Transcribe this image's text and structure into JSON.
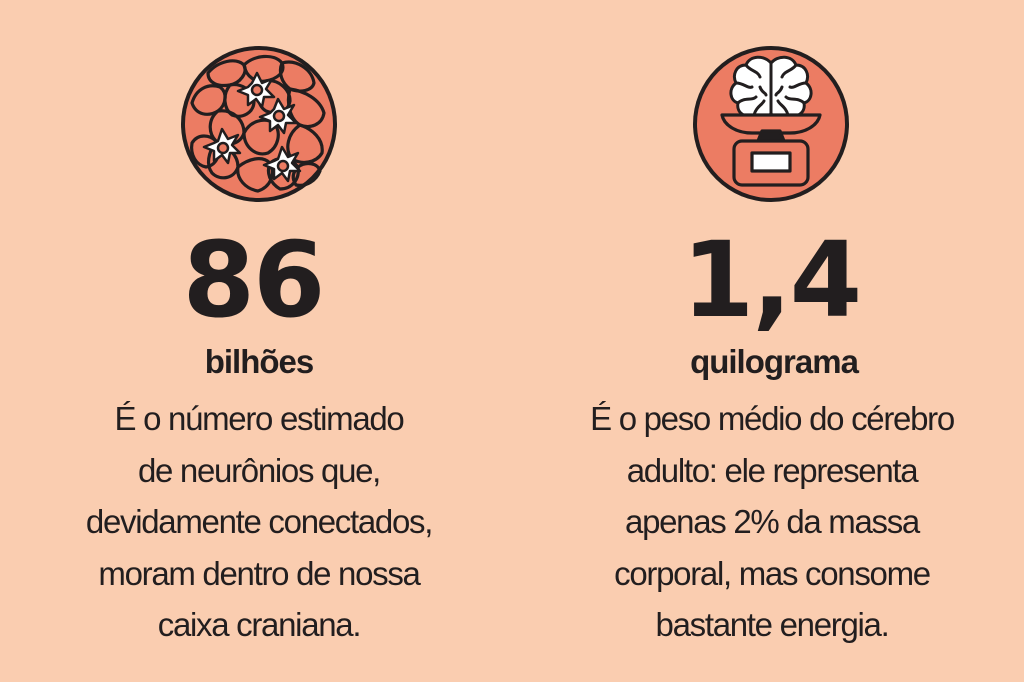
{
  "colors": {
    "background": "#FACDB0",
    "accent": "#EC7C63",
    "ink": "#221E1F",
    "white": "#FFFFFF"
  },
  "stats": [
    {
      "icon": "neuron-cells-icon",
      "number": "86",
      "unit": "bilhões",
      "description_lines": [
        "É o número estimado",
        "de neurônios que,",
        "devidamente conectados,",
        "moram dentro de nossa",
        "caixa craniana."
      ]
    },
    {
      "icon": "brain-on-scale-icon",
      "number": "1,4",
      "unit": "quilograma",
      "description_lines": [
        "É o peso médio do cérebro",
        "adulto: ele representa",
        "apenas 2% da massa",
        "corporal, mas consome",
        "bastante energia."
      ]
    }
  ]
}
